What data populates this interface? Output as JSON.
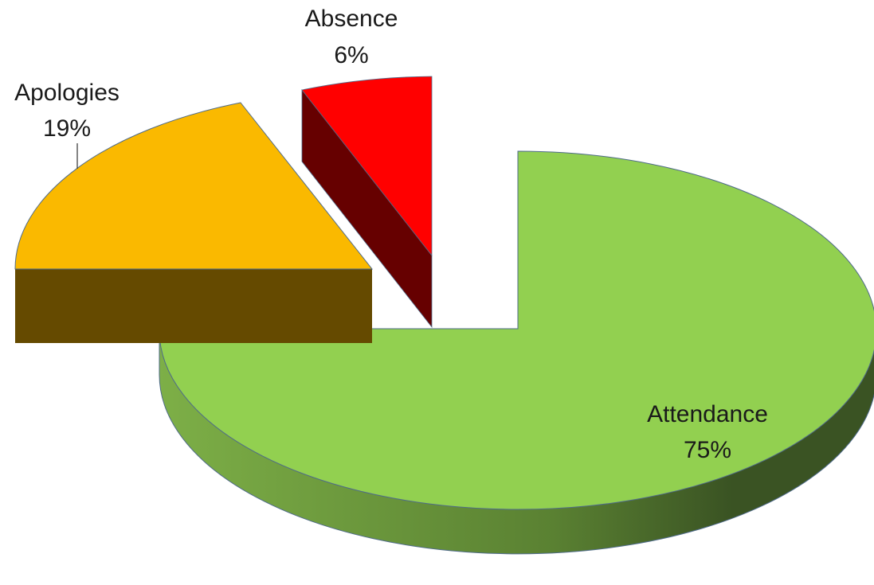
{
  "chart_data": {
    "type": "pie",
    "style": "3d-exploded",
    "title": "",
    "slices": [
      {
        "label": "Attendance",
        "value": 75,
        "value_label": "75%",
        "color": "#92D050",
        "side_color": "#3A5323",
        "exploded": false
      },
      {
        "label": "Apologies",
        "value": 19,
        "value_label": "19%",
        "color": "#FAB900",
        "side_color": "#654A00",
        "exploded": true
      },
      {
        "label": "Absence",
        "value": 6,
        "value_label": "6%",
        "color": "#FF0000",
        "side_color": "#660000",
        "exploded": true
      }
    ]
  }
}
